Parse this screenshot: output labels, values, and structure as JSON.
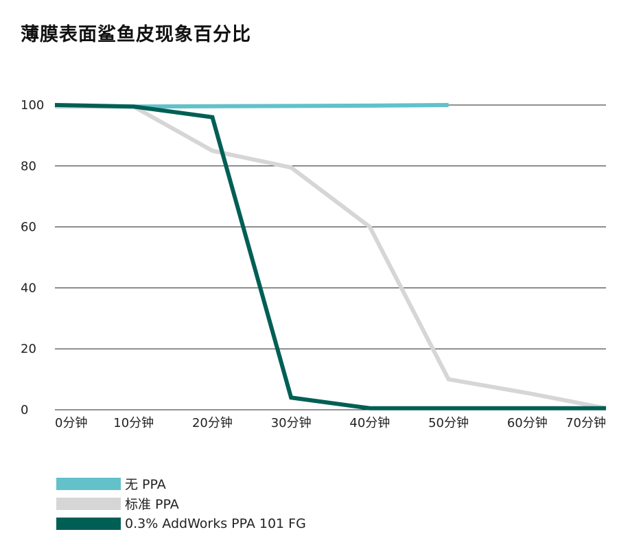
{
  "title": "薄膜表面鲨鱼皮现象百分比",
  "chart_data": {
    "type": "line",
    "categories": [
      "0分钟",
      "10分钟",
      "20分钟",
      "30分钟",
      "40分钟",
      "50分钟",
      "60分钟",
      "70分钟"
    ],
    "x_minutes": [
      0,
      10,
      20,
      30,
      40,
      50,
      60,
      70
    ],
    "ylim": [
      0,
      100
    ],
    "yticks": [
      0,
      20,
      40,
      60,
      80,
      100
    ],
    "grid": true,
    "legend_position": "bottom-left",
    "series": [
      {
        "name": "无 PPA",
        "color": "#62c1c9",
        "x": [
          0,
          10,
          20,
          30,
          40,
          50
        ],
        "values": [
          99.5,
          99.5,
          99.6,
          99.7,
          99.8,
          100
        ]
      },
      {
        "name": "标准 PPA",
        "color": "#d6d6d6",
        "x": [
          0,
          10,
          20,
          30,
          40,
          50,
          60,
          70
        ],
        "values": [
          99.5,
          99.5,
          85,
          79.5,
          60,
          10,
          5.5,
          0.5
        ]
      },
      {
        "name": "0.3% AddWorks PPA 101 FG",
        "color": "#005f55",
        "x": [
          0,
          10,
          20,
          30,
          40,
          50,
          60,
          70
        ],
        "values": [
          100,
          99.5,
          96,
          4,
          0.5,
          0.5,
          0.5,
          0.5
        ]
      }
    ]
  }
}
